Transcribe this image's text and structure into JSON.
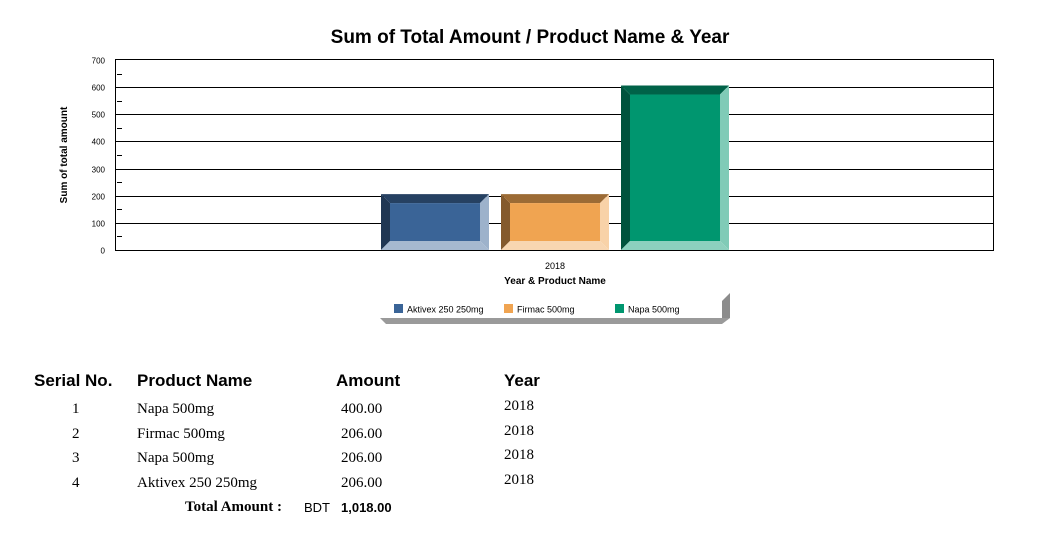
{
  "chart_data": {
    "type": "bar",
    "title": "Sum of Total Amount / Product Name & Year",
    "xlabel": "Year & Product Name",
    "ylabel": "Sum of total amount",
    "categories": [
      "2018"
    ],
    "series": [
      {
        "name": "Aktivex 250 250mg",
        "values": [
          206
        ],
        "color": "#3a6497"
      },
      {
        "name": "Firmac 500mg",
        "values": [
          206
        ],
        "color": "#f0a451"
      },
      {
        "name": "Napa 500mg",
        "values": [
          606
        ],
        "color": "#00966f"
      }
    ],
    "ylim": [
      0,
      700
    ],
    "yticks": [
      "0",
      "100",
      "200",
      "300",
      "400",
      "500",
      "600",
      "700"
    ],
    "grid": true,
    "legend": "bottom"
  },
  "table": {
    "headers": {
      "serial": "Serial No.",
      "product": "Product Name",
      "amount": "Amount",
      "year": "Year"
    },
    "rows": [
      {
        "serial": "1",
        "product": "Napa 500mg",
        "amount": "400.00",
        "year": "2018"
      },
      {
        "serial": "2",
        "product": "Firmac 500mg",
        "amount": "206.00",
        "year": "2018"
      },
      {
        "serial": "3",
        "product": "Napa 500mg",
        "amount": "206.00",
        "year": "2018"
      },
      {
        "serial": "4",
        "product": "Aktivex 250 250mg",
        "amount": "206.00",
        "year": "2018"
      }
    ],
    "total": {
      "label": "Total Amount :",
      "currency": "BDT",
      "value": "1,018.00"
    }
  }
}
